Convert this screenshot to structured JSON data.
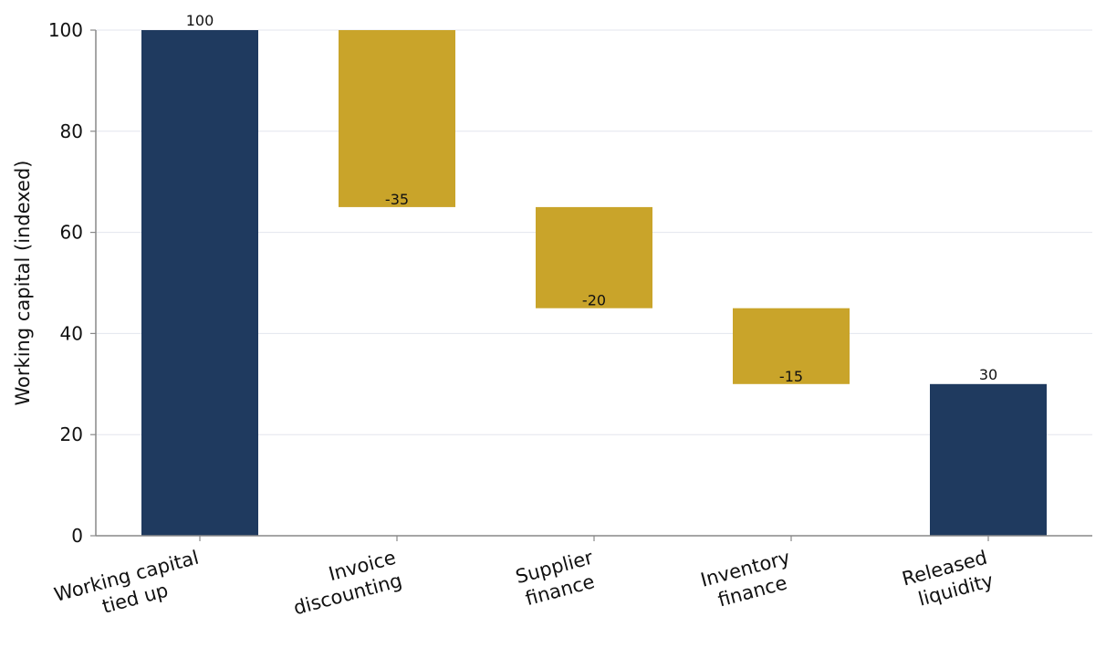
{
  "chart_data": {
    "type": "bar",
    "subtype": "waterfall",
    "ylabel": "Working capital (indexed)",
    "xlabel": "",
    "ylim": [
      0,
      100
    ],
    "yticks": [
      0,
      20,
      40,
      60,
      80,
      100
    ],
    "grid": "horizontal",
    "categories": [
      [
        "Working capital",
        "tied up"
      ],
      [
        "Invoice",
        "discounting"
      ],
      [
        "Supplier",
        "finance"
      ],
      [
        "Inventory",
        "finance"
      ],
      [
        "Released",
        "liquidity"
      ]
    ],
    "bars": [
      {
        "kind": "total",
        "start": 0,
        "end": 100,
        "label": "100"
      },
      {
        "kind": "delta",
        "start": 100,
        "end": 65,
        "label": "-35"
      },
      {
        "kind": "delta",
        "start": 65,
        "end": 45,
        "label": "-20"
      },
      {
        "kind": "delta",
        "start": 45,
        "end": 30,
        "label": "-15"
      },
      {
        "kind": "total",
        "start": 0,
        "end": 30,
        "label": "30"
      }
    ],
    "colors": {
      "total": "#1f3a5f",
      "delta": "#c9a42a",
      "axis": "#888888",
      "grid": "#e3e6ee"
    }
  }
}
